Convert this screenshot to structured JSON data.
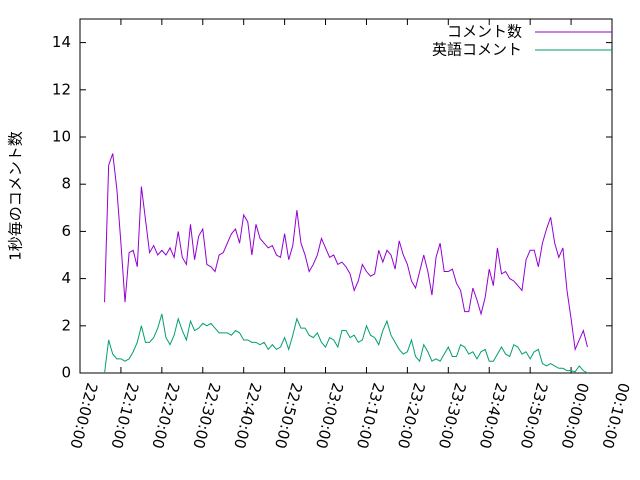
{
  "chart_data": {
    "type": "line",
    "ylabel": "1秒毎のコメント数",
    "legend": "top-right",
    "x": [
      "22:06:00",
      "22:07:00",
      "22:08:00",
      "22:09:00",
      "22:10:00",
      "22:11:00",
      "22:12:00",
      "22:13:00",
      "22:14:00",
      "22:15:00",
      "22:16:00",
      "22:17:00",
      "22:18:00",
      "22:19:00",
      "22:20:00",
      "22:21:00",
      "22:22:00",
      "22:23:00",
      "22:24:00",
      "22:25:00",
      "22:26:00",
      "22:27:00",
      "22:28:00",
      "22:29:00",
      "22:30:00",
      "22:31:00",
      "22:32:00",
      "22:33:00",
      "22:34:00",
      "22:35:00",
      "22:36:00",
      "22:37:00",
      "22:38:00",
      "22:39:00",
      "22:40:00",
      "22:41:00",
      "22:42:00",
      "22:43:00",
      "22:44:00",
      "22:45:00",
      "22:46:00",
      "22:47:00",
      "22:48:00",
      "22:49:00",
      "22:50:00",
      "22:51:00",
      "22:52:00",
      "22:53:00",
      "22:54:00",
      "22:55:00",
      "22:56:00",
      "22:57:00",
      "22:58:00",
      "22:59:00",
      "23:00:00",
      "23:01:00",
      "23:02:00",
      "23:03:00",
      "23:04:00",
      "23:05:00",
      "23:06:00",
      "23:07:00",
      "23:08:00",
      "23:09:00",
      "23:10:00",
      "23:11:00",
      "23:12:00",
      "23:13:00",
      "23:14:00",
      "23:15:00",
      "23:16:00",
      "23:17:00",
      "23:18:00",
      "23:19:00",
      "23:20:00",
      "23:21:00",
      "23:22:00",
      "23:23:00",
      "23:24:00",
      "23:25:00",
      "23:26:00",
      "23:27:00",
      "23:28:00",
      "23:29:00",
      "23:30:00",
      "23:31:00",
      "23:32:00",
      "23:33:00",
      "23:34:00",
      "23:35:00",
      "23:36:00",
      "23:37:00",
      "23:38:00",
      "23:39:00",
      "23:40:00",
      "23:41:00",
      "23:42:00",
      "23:43:00",
      "23:44:00",
      "23:45:00",
      "23:46:00",
      "23:47:00",
      "23:48:00",
      "23:49:00",
      "23:50:00",
      "23:51:00",
      "23:52:00",
      "23:53:00",
      "23:54:00",
      "23:55:00",
      "23:56:00",
      "23:57:00",
      "23:58:00",
      "23:59:00",
      "00:00:00",
      "00:01:00",
      "00:02:00",
      "00:03:00",
      "00:04:00"
    ],
    "series": [
      {
        "name": "コメント数",
        "color": "#9400d3",
        "values": [
          3.0,
          8.8,
          9.3,
          7.8,
          5.5,
          3.0,
          5.1,
          5.2,
          4.5,
          7.9,
          6.5,
          5.1,
          5.4,
          5.0,
          5.2,
          5.0,
          5.3,
          4.9,
          6.0,
          4.9,
          4.6,
          6.3,
          4.8,
          5.8,
          6.1,
          4.6,
          4.5,
          4.3,
          5.0,
          5.1,
          5.5,
          5.9,
          6.1,
          5.5,
          6.7,
          6.4,
          5.0,
          6.3,
          5.7,
          5.5,
          5.3,
          5.4,
          5.0,
          4.9,
          5.9,
          4.8,
          5.4,
          6.9,
          5.5,
          5.0,
          4.3,
          4.6,
          5.0,
          5.7,
          5.3,
          4.9,
          5.0,
          4.6,
          4.7,
          4.5,
          4.2,
          3.5,
          3.9,
          4.6,
          4.3,
          4.1,
          4.2,
          5.2,
          4.7,
          5.2,
          5.0,
          4.4,
          5.6,
          5.0,
          4.6,
          3.9,
          3.6,
          4.3,
          5.0,
          4.3,
          3.3,
          4.9,
          5.5,
          4.3,
          4.3,
          4.4,
          3.8,
          3.5,
          2.6,
          2.6,
          3.6,
          3.1,
          2.5,
          3.2,
          4.4,
          3.7,
          5.3,
          4.2,
          4.3,
          4.0,
          3.9,
          3.7,
          3.5,
          4.8,
          5.2,
          5.2,
          4.5,
          5.5,
          6.1,
          6.6,
          5.5,
          4.9,
          5.3,
          3.5,
          2.3,
          1.0,
          1.4,
          1.8,
          1.1
        ]
      },
      {
        "name": "英語コメント",
        "color": "#009e73",
        "values": [
          0.0,
          1.4,
          0.8,
          0.6,
          0.6,
          0.5,
          0.6,
          0.9,
          1.3,
          2.0,
          1.3,
          1.3,
          1.5,
          1.9,
          2.5,
          1.5,
          1.2,
          1.6,
          2.3,
          1.8,
          1.4,
          2.2,
          1.8,
          1.9,
          2.1,
          2.0,
          2.1,
          1.9,
          1.7,
          1.7,
          1.7,
          1.6,
          1.8,
          1.7,
          1.4,
          1.4,
          1.3,
          1.3,
          1.2,
          1.3,
          1.0,
          1.2,
          1.0,
          1.1,
          1.5,
          1.0,
          1.6,
          2.3,
          1.9,
          1.9,
          1.6,
          1.5,
          1.7,
          1.3,
          1.1,
          1.5,
          1.4,
          1.1,
          1.8,
          1.8,
          1.5,
          1.6,
          1.3,
          1.4,
          2.0,
          1.6,
          1.5,
          1.2,
          1.8,
          2.2,
          1.6,
          1.3,
          1.0,
          0.8,
          0.9,
          1.4,
          0.7,
          0.5,
          1.2,
          0.9,
          0.5,
          0.6,
          0.5,
          0.8,
          1.1,
          0.7,
          0.7,
          1.2,
          1.1,
          0.8,
          0.9,
          0.6,
          0.9,
          1.0,
          0.5,
          0.5,
          0.8,
          1.1,
          0.8,
          0.7,
          1.2,
          1.1,
          0.8,
          0.9,
          0.6,
          0.9,
          1.0,
          0.4,
          0.3,
          0.4,
          0.3,
          0.2,
          0.2,
          0.1,
          0.1,
          0.05,
          0.3,
          0.1,
          0.0
        ]
      }
    ],
    "xlim": [
      "22:00:00",
      "00:10:00"
    ],
    "xticks": [
      "22:00:00",
      "22:10:00",
      "22:20:00",
      "22:30:00",
      "22:40:00",
      "22:50:00",
      "23:00:00",
      "23:10:00",
      "23:20:00",
      "23:30:00",
      "23:40:00",
      "23:50:00",
      "00:00:00",
      "00:10:00"
    ],
    "ylim": [
      0,
      15
    ],
    "yticks": [
      0,
      2,
      4,
      6,
      8,
      10,
      12,
      14
    ]
  }
}
